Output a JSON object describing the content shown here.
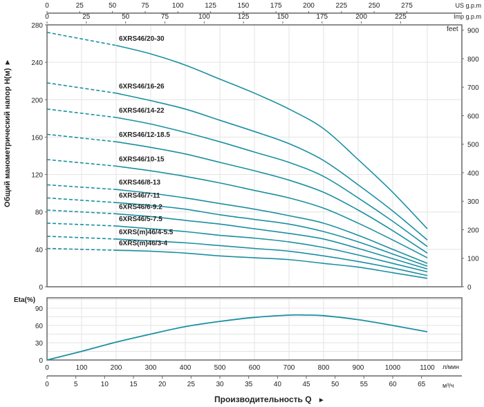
{
  "chart_data": [
    {
      "type": "line",
      "title": "",
      "ylabel": "Общий манометрический напор H(м)",
      "ylabel_arrow": "►",
      "ylim": [
        0,
        280
      ],
      "yticks": [
        0,
        40,
        80,
        120,
        160,
        200,
        240,
        280
      ],
      "y2label": "feet",
      "y2ticks": [
        0,
        100,
        200,
        300,
        400,
        500,
        600,
        700,
        800,
        900
      ],
      "xlim_lpm": [
        0,
        1200
      ],
      "top_axes": [
        {
          "label": "US g.p.m",
          "ticks": [
            0,
            25,
            50,
            75,
            100,
            125,
            150,
            175,
            200,
            225,
            250,
            275
          ],
          "lpm_per_unit": 3.785
        },
        {
          "label": "Imp g.p.m",
          "ticks": [
            0,
            25,
            50,
            75,
            100,
            125,
            150,
            175,
            200,
            225
          ],
          "lpm_per_unit": 4.546
        }
      ],
      "x": [
        0,
        200,
        300,
        400,
        500,
        600,
        700,
        800,
        900,
        1000,
        1100
      ],
      "dashed_until": 200,
      "color": "#1a8fa0",
      "series": [
        {
          "name": "6XRS46/20-30",
          "values": [
            272,
            258,
            249,
            237,
            222,
            207,
            190,
            169,
            136,
            101,
            62
          ]
        },
        {
          "name": "6XRS46/16-26",
          "values": [
            218,
            207,
            199,
            190,
            178,
            166,
            153,
            135,
            109,
            81,
            50
          ]
        },
        {
          "name": "6XRS46/14-22",
          "values": [
            190,
            181,
            174,
            165,
            155,
            144,
            133,
            118,
            95,
            70,
            43
          ]
        },
        {
          "name": "6XRS46/12-18.5",
          "values": [
            163,
            155,
            149,
            142,
            133,
            124,
            114,
            101,
            82,
            60,
            36
          ]
        },
        {
          "name": "6XRS46/10-15",
          "values": [
            136,
            129,
            124,
            118,
            111,
            103,
            95,
            84,
            68,
            50,
            31
          ]
        },
        {
          "name": "6XRS46/8-13",
          "values": [
            109,
            104,
            100,
            95,
            89,
            83,
            76,
            68,
            55,
            40,
            25
          ]
        },
        {
          "name": "6XRS46/7-11",
          "values": [
            95,
            90,
            87,
            83,
            77,
            72,
            67,
            59,
            48,
            35,
            22
          ]
        },
        {
          "name": "6XRS46/6-9.2",
          "values": [
            82,
            78,
            75,
            71,
            67,
            62,
            57,
            51,
            41,
            30,
            19
          ]
        },
        {
          "name": "6XRS46/5-7.5",
          "values": [
            68,
            65,
            62,
            59,
            55,
            52,
            48,
            42,
            34,
            25,
            16
          ]
        },
        {
          "name": "6XRS(m)46/4-5.5",
          "values": [
            54,
            51,
            49,
            47,
            44,
            41,
            38,
            33,
            27,
            20,
            12
          ]
        },
        {
          "name": "6XRS(m)46/3-4",
          "values": [
            41,
            39,
            38,
            36,
            33,
            31,
            29,
            25,
            21,
            15,
            9
          ]
        }
      ]
    },
    {
      "type": "line",
      "ylabel": "Eta(%)",
      "ylim": [
        0,
        108
      ],
      "yticks": [
        0,
        30,
        60,
        90
      ],
      "x": [
        0,
        100,
        200,
        300,
        400,
        500,
        600,
        700,
        750,
        800,
        900,
        1000,
        1100
      ],
      "values": [
        0,
        15,
        31,
        45,
        58,
        67,
        74,
        78,
        78,
        77,
        70,
        60,
        49
      ],
      "xticks_lpm": [
        0,
        100,
        200,
        300,
        400,
        500,
        600,
        700,
        800,
        900,
        1000,
        1100
      ],
      "xunit_lpm": "л/мин",
      "xticks_m3h": [
        0,
        5,
        10,
        15,
        20,
        25,
        30,
        35,
        40,
        45,
        50,
        55,
        60,
        65
      ],
      "xunit_m3h": "м³/ч",
      "xlabel": "Производительность Q",
      "xlabel_arrow": "►"
    }
  ]
}
